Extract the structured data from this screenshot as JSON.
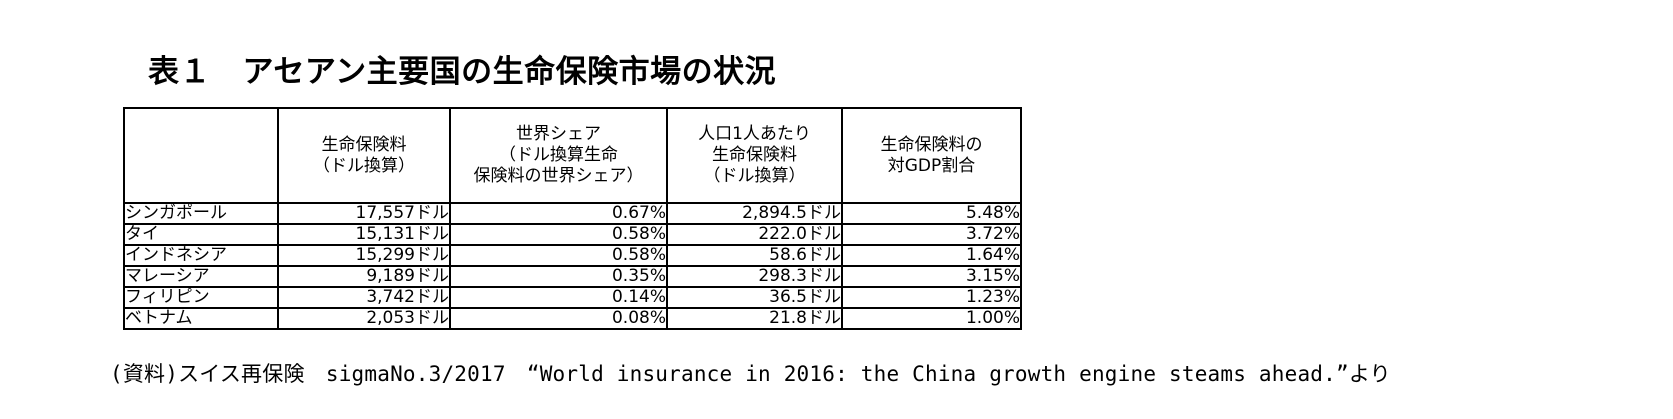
{
  "title": "表１　アセアン主要国の生命保険市場の状況",
  "table": {
    "headers": [
      {
        "lines": [
          ""
        ]
      },
      {
        "lines": [
          "生命保険料",
          "（ドル換算）"
        ]
      },
      {
        "lines": [
          "世界シェア",
          "（ドル換算生命",
          "保険料の世界シェア）"
        ]
      },
      {
        "lines": [
          "人口1人あたり",
          "生命保険料",
          "（ドル換算）"
        ]
      },
      {
        "lines": [
          "生命保険料の",
          "対GDP割合"
        ]
      }
    ],
    "rows": [
      {
        "country": "シンガポール",
        "premium": "17,557ドル",
        "share": "0.67%",
        "per_capita": "2,894.5ドル",
        "gdp_ratio": "5.48%"
      },
      {
        "country": "タイ",
        "premium": "15,131ドル",
        "share": "0.58%",
        "per_capita": "222.0ドル",
        "gdp_ratio": "3.72%"
      },
      {
        "country": "インドネシア",
        "premium": "15,299ドル",
        "share": "0.58%",
        "per_capita": "58.6ドル",
        "gdp_ratio": "1.64%"
      },
      {
        "country": "マレーシア",
        "premium": "9,189ドル",
        "share": "0.35%",
        "per_capita": "298.3ドル",
        "gdp_ratio": "3.15%"
      },
      {
        "country": "フィリピン",
        "premium": "3,742ドル",
        "share": "0.14%",
        "per_capita": "36.5ドル",
        "gdp_ratio": "1.23%"
      },
      {
        "country": "ベトナム",
        "premium": "2,053ドル",
        "share": "0.08%",
        "per_capita": "21.8ドル",
        "gdp_ratio": "1.00%"
      }
    ]
  },
  "source": "(資料)スイス再保険　sigmaNo.3/2017　“World insurance in 2016: the China growth engine steams ahead.”より"
}
